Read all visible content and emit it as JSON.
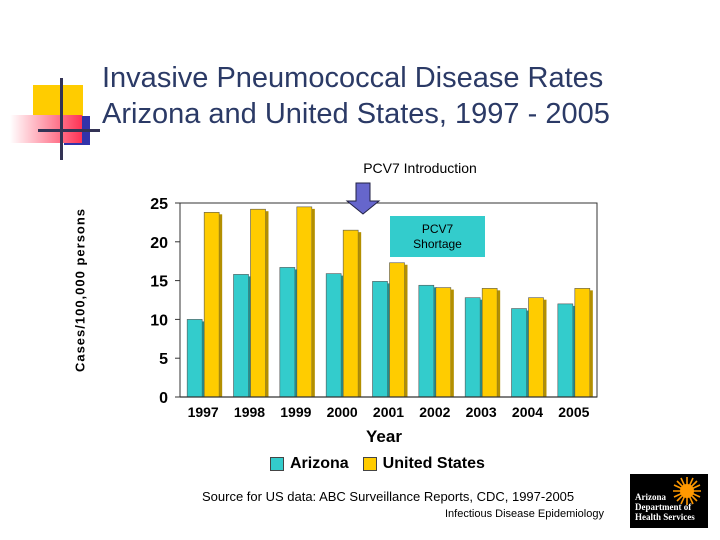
{
  "slide": {
    "title_line1": "Invasive Pneumococcal Disease Rates",
    "title_line2": "Arizona and United States, 1997 - 2005",
    "arrow_label": "PCV7 Introduction",
    "shortage_line1": "PCV7",
    "shortage_line2": "Shortage",
    "source": "Source for US data: ABC Surveillance Reports,  CDC, 1997-2005",
    "footer": "Infectious Disease Epidemiology",
    "logo_line1": "Arizona",
    "logo_line2": "Department of",
    "logo_line3": "Health Services"
  },
  "colors": {
    "arizona": "#33cccc",
    "united_states": "#ffcc00",
    "title": "#2b3a66",
    "arrow": "#6666cc"
  },
  "chart_data": {
    "type": "bar",
    "title": "",
    "xlabel": "Year",
    "ylabel": "Cases/100,000 persons",
    "ylim": [
      0,
      25
    ],
    "yticks": [
      0,
      5,
      10,
      15,
      20,
      25
    ],
    "categories": [
      "1997",
      "1998",
      "1999",
      "2000",
      "2001",
      "2002",
      "2003",
      "2004",
      "2005"
    ],
    "series": [
      {
        "name": "Arizona",
        "values": [
          10.0,
          15.8,
          16.7,
          15.9,
          14.9,
          14.4,
          12.8,
          11.4,
          12.0
        ]
      },
      {
        "name": "United States",
        "values": [
          23.8,
          24.2,
          24.5,
          21.5,
          17.3,
          14.1,
          14.0,
          12.8,
          14.0
        ]
      }
    ],
    "legend_position": "bottom"
  }
}
